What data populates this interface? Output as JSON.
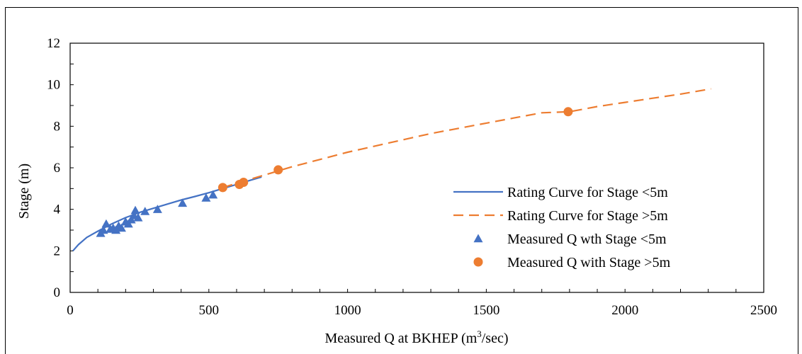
{
  "chart_data": {
    "type": "scatter",
    "xlabel": "Measured Q at BKHEP (m³/sec)",
    "ylabel": "Stage (m)",
    "xlim": [
      0,
      2500
    ],
    "ylim": [
      0,
      12
    ],
    "x_ticks": [
      "0",
      "500",
      "1000",
      "1500",
      "2000",
      "2500"
    ],
    "y_ticks": [
      "0",
      "2",
      "4",
      "6",
      "8",
      "10",
      "12"
    ],
    "grid": false,
    "legend_position": "bottom-right",
    "series": [
      {
        "name": "Rating Curve for Stage <5m",
        "kind": "line",
        "style": "solid",
        "color": "#4472C4",
        "x": [
          10,
          30,
          60,
          100,
          150,
          200,
          250,
          300,
          350,
          400,
          450,
          500,
          550,
          600,
          650,
          690
        ],
        "y": [
          2.0,
          2.3,
          2.65,
          2.95,
          3.3,
          3.6,
          3.85,
          4.05,
          4.25,
          4.45,
          4.62,
          4.8,
          5.0,
          5.2,
          5.4,
          5.56
        ]
      },
      {
        "name": "Rating Curve for Stage >5m",
        "kind": "line",
        "style": "dashed",
        "color": "#ED7D31",
        "x": [
          550,
          600,
          650,
          700,
          750,
          800,
          900,
          1000,
          1100,
          1200,
          1300,
          1400,
          1500,
          1600,
          1700,
          1800,
          1900,
          2000,
          2100,
          2200,
          2310
        ],
        "y": [
          5.05,
          5.25,
          5.45,
          5.65,
          5.85,
          6.05,
          6.4,
          6.75,
          7.05,
          7.35,
          7.65,
          7.9,
          8.15,
          8.4,
          8.65,
          8.7,
          8.95,
          9.15,
          9.35,
          9.55,
          9.8
        ]
      },
      {
        "name": "Measured Q wth Stage <5m",
        "kind": "scatter",
        "marker": "triangle",
        "color": "#4472C4",
        "x": [
          110,
          120,
          130,
          145,
          155,
          165,
          175,
          185,
          200,
          210,
          220,
          230,
          235,
          245,
          270,
          315,
          405,
          490,
          515
        ],
        "y": [
          2.85,
          3.0,
          3.3,
          3.05,
          3.1,
          3.0,
          3.2,
          3.1,
          3.4,
          3.3,
          3.5,
          3.7,
          3.95,
          3.6,
          3.9,
          4.0,
          4.3,
          4.55,
          4.7
        ]
      },
      {
        "name": "Measured Q with Stage >5m",
        "kind": "scatter",
        "marker": "circle",
        "color": "#ED7D31",
        "x": [
          550,
          610,
          625,
          750,
          1795
        ],
        "y": [
          5.05,
          5.2,
          5.3,
          5.9,
          8.7
        ]
      }
    ]
  }
}
